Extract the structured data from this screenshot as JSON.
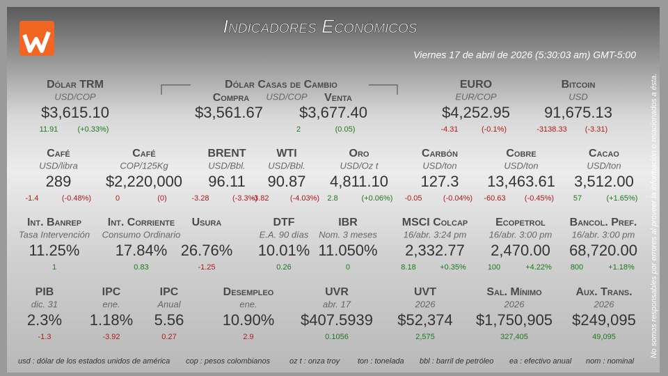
{
  "header": {
    "title": "Indicadores Económicos",
    "date": "Viernes 17 de abril de 2026 (5:30:03 am) GMT-5:00"
  },
  "casas_de_cambio": {
    "title": "Dólar Casas de Cambio",
    "compra_label": "Compra",
    "unit": "USD/COP",
    "venta_label": "Venta",
    "compra": "$3,561.67",
    "venta": "$3,677.40",
    "change": "2",
    "pct": "(0.05)",
    "color": "#1a7a1a"
  },
  "rows": [
    [
      {
        "name": "Dólar TRM",
        "unit": "USD/COP",
        "value": "$3,615.10",
        "change": "11.91",
        "pct": "(+0.33%)",
        "color": "#1a7a1a"
      },
      {
        "name": "EURO",
        "unit": "EUR/COP",
        "value": "$4,252.95",
        "change": "-4.31",
        "pct": "(-0.1%)",
        "color": "#b01818"
      },
      {
        "name": "Bitcoin",
        "unit": "USD",
        "value": "91,675.13",
        "change": "-3138.33",
        "pct": "(-3.31)",
        "color": "#b01818"
      }
    ],
    [
      {
        "name": "Café",
        "unit": "USD/libra",
        "value": "289",
        "change": "-1.4",
        "pct": "(-0.48%)",
        "color": "#b01818"
      },
      {
        "name": "Café",
        "unit": "COP/125Kg",
        "value": "$2,220,000",
        "change": "0",
        "pct": "(0)",
        "color": "#b01818"
      },
      {
        "name": "BRENT",
        "unit": "USD/Bbl.",
        "value": "96.11",
        "change": "-3.28",
        "pct": "(-3.3%)",
        "color": "#b01818"
      },
      {
        "name": "WTI",
        "unit": "USD/Bbl.",
        "value": "90.87",
        "change": "-3.82",
        "pct": "(-4.03%)",
        "color": "#b01818"
      },
      {
        "name": "Oro",
        "unit": "USD/Oz t",
        "value": "4,811.10",
        "change": "2.8",
        "pct": "(+0.06%)",
        "color": "#1a7a1a"
      },
      {
        "name": "Carbón",
        "unit": "USD/ton",
        "value": "127.3",
        "change": "-0.05",
        "pct": "(-0.04%)",
        "color": "#b01818"
      },
      {
        "name": "Cobre",
        "unit": "USD/ton",
        "value": "13,463.61",
        "change": "-60.63",
        "pct": "(-0.45%)",
        "color": "#b01818"
      },
      {
        "name": "Cacao",
        "unit": "USD/ton",
        "value": "3,512.00",
        "change": "57",
        "pct": "(+1.65%)",
        "color": "#1a7a1a"
      }
    ],
    [
      {
        "name": "Int. Banrep",
        "unit": "Tasa Intervención",
        "value": "11.25%",
        "change": "1",
        "color": "#1a7a1a"
      },
      {
        "name": "Int. Corriente",
        "unit": "Consumo Ordinario",
        "value": "17.84%",
        "change": "0.83",
        "color": "#1a7a1a"
      },
      {
        "name": "Usura",
        "value": "26.76%",
        "change": "-1.25",
        "color": "#b01818"
      },
      {
        "name": "DTF",
        "unit": "E.A. 90 días",
        "value": "10.01%",
        "change": "0.26",
        "color": "#1a7a1a"
      },
      {
        "name": "IBR",
        "unit": "Nom. 3 meses",
        "value": "11.050%",
        "change": "0",
        "color": "#1a7a1a"
      },
      {
        "name": "MSCI Colcap",
        "unit": "16/abr. 3:24 pm",
        "value": "2,332.77",
        "change": "8.18",
        "pct": "+0.35%",
        "color": "#1a7a1a"
      },
      {
        "name": "Ecopetrol",
        "unit": "16/abr. 3:00 pm",
        "value": "2,470.00",
        "change": "100",
        "pct": "+4.22%",
        "color": "#1a7a1a"
      },
      {
        "name": "Bancol. Pref.",
        "unit": "16/abr. 3:00 pm",
        "value": "68,720.00",
        "change": "800",
        "pct": "+1.18%",
        "color": "#1a7a1a"
      }
    ],
    [
      {
        "name": "PIB",
        "unit": "dic. 31",
        "value": "2.3%",
        "change": "-1.3",
        "color": "#b01818"
      },
      {
        "name": "IPC",
        "unit": "ene.",
        "value": "1.18%",
        "change": "-3.92",
        "color": "#b01818"
      },
      {
        "name": "IPC",
        "unit": "Anual",
        "value": "5.56",
        "change": "0.27",
        "color": "#b01818"
      },
      {
        "name": "Desempleo",
        "unit": "ene.",
        "value": "10.90%",
        "change": "2.9",
        "color": "#b01818"
      },
      {
        "name": "UVR",
        "unit": "abr. 17",
        "value": "$407.5939",
        "change": "0.1056",
        "color": "#1a7a1a"
      },
      {
        "name": "UVT",
        "unit": "2026",
        "value": "$52,374",
        "change": "2,575",
        "color": "#1a7a1a"
      },
      {
        "name": "Sal. Mínimo",
        "unit": "2026",
        "value": "$1,750,905",
        "change": "327,405",
        "color": "#1a7a1a"
      },
      {
        "name": "Aux. Trans.",
        "unit": "2026",
        "value": "$249,095",
        "change": "49,095",
        "color": "#1a7a1a"
      }
    ]
  ],
  "footer": [
    "usd : dólar de los estados unidos de américa",
    "cop : pesos colombianos",
    "oz t : onza troy",
    "ton : tonelada",
    "bbl : barril de petróleo",
    "ea : efectivo anual",
    "nom : nominal"
  ],
  "disclaimer": "No somos responsables por errores al proveer la información o relacionados a ésta."
}
